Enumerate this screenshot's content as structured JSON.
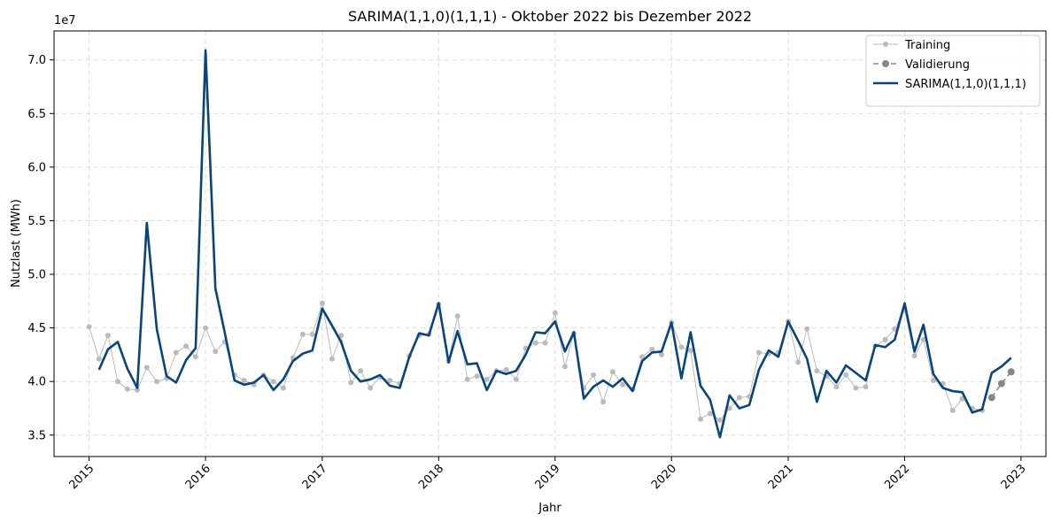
{
  "chart_data": {
    "type": "line",
    "title": "SARIMA(1,1,0)(1,1,1) - Oktober 2022 bis Dezember 2022",
    "xlabel": "Jahr",
    "ylabel": "Nutzlast (MWh)",
    "y_offset_label": "1e7",
    "y_scale_factor": 10000000,
    "xlim": [
      "2014-09-13",
      "2023-03-20"
    ],
    "ylim": [
      3.3,
      7.27
    ],
    "x_ticks": [
      "2015",
      "2016",
      "2017",
      "2018",
      "2019",
      "2020",
      "2021",
      "2022",
      "2023"
    ],
    "y_ticks": [
      "3.5",
      "4.0",
      "4.5",
      "5.0",
      "5.5",
      "6.0",
      "6.5",
      "7.0"
    ],
    "grid": true,
    "legend_position": "top-right",
    "colors": {
      "training": "#bbbbbb",
      "validation": "#888888",
      "model": "#08457e"
    },
    "series": [
      {
        "name": "Training",
        "start": "2015-01",
        "values": [
          4.51,
          4.21,
          4.43,
          4.0,
          3.93,
          3.92,
          4.13,
          4.0,
          4.03,
          4.27,
          4.33,
          4.23,
          4.5,
          4.28,
          4.37,
          4.06,
          4.01,
          3.97,
          4.06,
          4.0,
          3.94,
          4.22,
          4.44,
          4.44,
          4.73,
          4.21,
          4.43,
          3.99,
          4.1,
          3.94,
          4.04,
          4.01,
          3.98,
          4.24,
          4.43,
          4.44,
          4.72,
          4.19,
          4.61,
          4.02,
          4.05,
          4.02,
          4.1,
          4.11,
          4.02,
          4.31,
          4.36,
          4.36,
          4.64,
          4.14,
          4.45,
          3.94,
          4.06,
          3.81,
          4.09,
          3.97,
          3.93,
          4.23,
          4.3,
          4.25,
          4.55,
          4.32,
          4.29,
          3.65,
          3.7,
          3.64,
          3.75,
          3.85,
          3.86,
          4.27,
          4.26,
          4.27,
          4.56,
          4.18,
          4.49,
          4.1,
          4.05,
          3.95,
          4.06,
          3.94,
          3.95,
          4.33,
          4.39,
          4.49,
          4.67,
          4.24,
          4.39,
          4.01,
          3.98,
          3.73,
          3.84,
          3.75,
          3.73
        ]
      },
      {
        "name": "Validierung",
        "start": "2022-10",
        "values": [
          3.85,
          3.98,
          4.09
        ]
      },
      {
        "name": "SARIMA(1,1,0)(1,1,1)",
        "start": "2015-02",
        "values": [
          4.11,
          4.3,
          4.37,
          4.12,
          3.94,
          5.48,
          4.49,
          4.05,
          3.99,
          4.2,
          4.31,
          7.09,
          4.87,
          4.46,
          4.01,
          3.97,
          3.99,
          4.06,
          3.92,
          4.02,
          4.19,
          4.26,
          4.29,
          4.68,
          4.52,
          4.37,
          4.1,
          4.0,
          4.02,
          4.06,
          3.96,
          3.94,
          4.23,
          4.45,
          4.43,
          4.73,
          4.18,
          4.47,
          4.16,
          4.17,
          3.92,
          4.1,
          4.07,
          4.1,
          4.25,
          4.46,
          4.45,
          4.56,
          4.28,
          4.46,
          3.84,
          3.95,
          4.01,
          3.95,
          4.03,
          3.91,
          4.19,
          4.27,
          4.28,
          4.55,
          4.03,
          4.46,
          3.96,
          3.83,
          3.48,
          3.87,
          3.75,
          3.78,
          4.11,
          4.29,
          4.23,
          4.56,
          4.38,
          4.21,
          3.81,
          4.1,
          3.99,
          4.15,
          4.08,
          4.01,
          4.34,
          4.32,
          4.39,
          4.73,
          4.28,
          4.53,
          4.07,
          3.94,
          3.91,
          3.9,
          3.71,
          3.74,
          4.08,
          4.14,
          4.22
        ]
      }
    ]
  }
}
